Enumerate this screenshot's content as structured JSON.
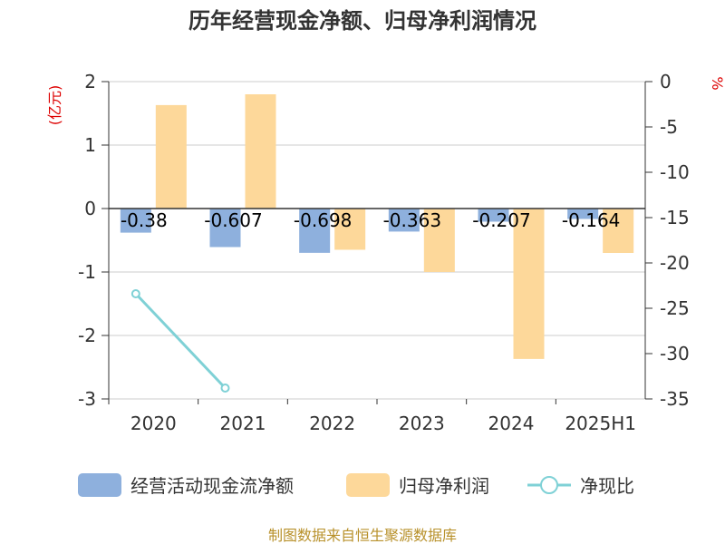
{
  "chart_data": {
    "type": "bar",
    "title": "历年经营现金净额、归母净利润情况",
    "left_axis_unit": "(亿元)",
    "right_axis_unit": "%",
    "categories": [
      "2020",
      "2021",
      "2022",
      "2023",
      "2024",
      "2025H1"
    ],
    "left_axis": {
      "ylim": [
        -3,
        2
      ],
      "ticks": [
        "2",
        "1",
        "0",
        "-1",
        "-2",
        "-3"
      ]
    },
    "right_axis": {
      "ylim": [
        -35,
        0
      ],
      "ticks": [
        "0",
        "-5",
        "-10",
        "-15",
        "-20",
        "-25",
        "-30",
        "-35"
      ]
    },
    "series": [
      {
        "name": "经营活动现金流净额",
        "type": "bar",
        "axis": "left",
        "color": "#8eb0dd",
        "values": [
          -0.38,
          -0.607,
          -0.698,
          -0.363,
          -0.207,
          -0.164
        ],
        "labels": [
          "-0.38",
          "-0.607",
          "-0.698",
          "-0.363",
          "-0.207",
          "-0.164"
        ]
      },
      {
        "name": "归母净利润",
        "type": "bar",
        "axis": "left",
        "color": "#fdd89a",
        "values": [
          1.63,
          1.8,
          -0.65,
          -1.0,
          -2.37,
          -0.7
        ]
      },
      {
        "name": "净现比",
        "type": "line",
        "axis": "right",
        "color": "#7fd1d6",
        "values": [
          -23.4,
          -33.8,
          null,
          null,
          null,
          null
        ]
      }
    ],
    "grid": true,
    "legend": "bottom"
  },
  "footer": {
    "source": "制图数据来自恒生聚源数据库"
  }
}
